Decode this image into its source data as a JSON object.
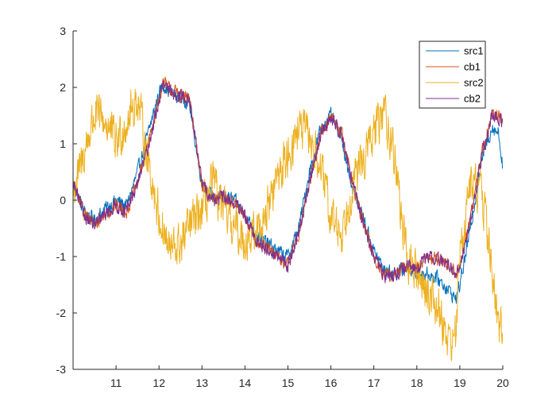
{
  "chart_data": {
    "type": "line",
    "title": "",
    "xlabel": "",
    "ylabel": "",
    "xlim": [
      10,
      20
    ],
    "ylim": [
      -3,
      3
    ],
    "xticks": [
      11,
      12,
      13,
      14,
      15,
      16,
      17,
      18,
      19,
      20
    ],
    "xtick_labels": [
      "11",
      "12",
      "13",
      "14",
      "15",
      "16",
      "17",
      "18",
      "19",
      "20"
    ],
    "yticks": [
      -3,
      -2,
      -1,
      0,
      1,
      2,
      3
    ],
    "ytick_labels": [
      "-3",
      "-2",
      "-1",
      "0",
      "1",
      "2",
      "3"
    ],
    "grid": false,
    "legend": "top-right",
    "series": [
      {
        "name": "src1",
        "color": "#0072BD",
        "noise": 0.05,
        "x": [
          10.0,
          10.25,
          10.5,
          10.75,
          11.0,
          11.25,
          11.5,
          11.75,
          12.0,
          12.1,
          12.2,
          12.5,
          12.7,
          12.85,
          13.0,
          13.25,
          13.5,
          13.75,
          14.0,
          14.25,
          14.5,
          14.75,
          15.0,
          15.25,
          15.5,
          15.75,
          16.0,
          16.25,
          16.5,
          16.75,
          17.0,
          17.25,
          17.5,
          17.75,
          18.0,
          18.25,
          18.5,
          18.75,
          18.9,
          19.0,
          19.25,
          19.5,
          19.75,
          19.9,
          20.0
        ],
        "y": [
          0.3,
          -0.2,
          -0.35,
          -0.15,
          0.0,
          -0.1,
          0.5,
          1.2,
          1.9,
          2.05,
          1.95,
          1.8,
          1.75,
          1.0,
          0.3,
          0.05,
          0.1,
          0.0,
          -0.25,
          -0.6,
          -0.75,
          -0.9,
          -1.0,
          -0.5,
          0.5,
          1.25,
          1.5,
          1.1,
          0.2,
          -0.3,
          -0.9,
          -1.25,
          -1.3,
          -1.2,
          -1.3,
          -1.3,
          -1.4,
          -1.6,
          -1.75,
          -1.5,
          -0.5,
          0.7,
          1.3,
          1.2,
          0.6
        ]
      },
      {
        "name": "cb1",
        "color": "#D95319",
        "noise": 0.05,
        "x": [
          10.0,
          10.25,
          10.5,
          10.75,
          11.0,
          11.25,
          11.5,
          11.75,
          12.0,
          12.1,
          12.2,
          12.5,
          12.7,
          12.85,
          13.0,
          13.25,
          13.5,
          13.75,
          14.0,
          14.25,
          14.5,
          14.75,
          15.0,
          15.25,
          15.5,
          15.75,
          16.0,
          16.25,
          16.5,
          16.75,
          17.0,
          17.25,
          17.5,
          17.75,
          18.0,
          18.25,
          18.5,
          18.75,
          18.9,
          19.0,
          19.25,
          19.5,
          19.75,
          19.9,
          20.0
        ],
        "y": [
          0.3,
          -0.2,
          -0.45,
          -0.25,
          -0.1,
          -0.2,
          0.3,
          1.0,
          1.8,
          2.1,
          2.0,
          1.85,
          1.8,
          1.1,
          0.3,
          0.0,
          0.05,
          -0.05,
          -0.3,
          -0.7,
          -0.85,
          -1.0,
          -1.15,
          -0.6,
          0.3,
          1.15,
          1.5,
          1.2,
          0.3,
          -0.4,
          -1.0,
          -1.35,
          -1.3,
          -1.2,
          -1.2,
          -1.0,
          -1.05,
          -1.15,
          -1.3,
          -1.2,
          -0.3,
          0.8,
          1.5,
          1.5,
          1.45
        ]
      },
      {
        "name": "src2",
        "color": "#EDB120",
        "noise": 0.16,
        "x": [
          10.0,
          10.15,
          10.35,
          10.5,
          10.75,
          11.0,
          11.25,
          11.5,
          11.75,
          12.0,
          12.25,
          12.5,
          12.75,
          13.0,
          13.25,
          13.5,
          13.75,
          14.0,
          14.25,
          14.5,
          14.75,
          15.0,
          15.25,
          15.5,
          15.75,
          16.0,
          16.25,
          16.5,
          16.75,
          17.0,
          17.25,
          17.5,
          17.75,
          18.0,
          18.25,
          18.5,
          18.75,
          18.9,
          19.0,
          19.25,
          19.5,
          19.75,
          19.9,
          20.0
        ],
        "y": [
          0.1,
          0.5,
          1.1,
          1.5,
          1.4,
          1.0,
          1.4,
          1.8,
          0.7,
          -0.3,
          -0.9,
          -0.8,
          -0.4,
          -0.2,
          0.3,
          -0.2,
          -0.5,
          -0.7,
          -0.6,
          -0.2,
          0.4,
          0.8,
          1.3,
          1.1,
          0.6,
          -0.3,
          -0.6,
          0.3,
          0.7,
          1.2,
          1.6,
          0.7,
          -1.0,
          -1.3,
          -1.6,
          -1.9,
          -2.5,
          -2.4,
          -1.0,
          0.3,
          0.2,
          -1.2,
          -2.4,
          -2.1
        ]
      },
      {
        "name": "cb2",
        "color": "#7E2F8E",
        "noise": 0.05,
        "x": [
          10.0,
          10.25,
          10.5,
          10.75,
          11.0,
          11.25,
          11.5,
          11.75,
          12.0,
          12.1,
          12.2,
          12.5,
          12.7,
          12.85,
          13.0,
          13.25,
          13.5,
          13.75,
          14.0,
          14.25,
          14.5,
          14.75,
          15.0,
          15.25,
          15.5,
          15.75,
          16.0,
          16.25,
          16.5,
          16.75,
          17.0,
          17.25,
          17.5,
          17.75,
          18.0,
          18.25,
          18.5,
          18.75,
          18.9,
          19.0,
          19.25,
          19.5,
          19.75,
          19.9,
          20.0
        ],
        "y": [
          0.3,
          -0.25,
          -0.45,
          -0.25,
          -0.1,
          -0.2,
          0.3,
          0.95,
          1.75,
          2.05,
          1.95,
          1.85,
          1.8,
          1.05,
          0.3,
          0.0,
          0.05,
          -0.05,
          -0.3,
          -0.7,
          -0.85,
          -1.0,
          -1.15,
          -0.6,
          0.3,
          1.15,
          1.45,
          1.2,
          0.3,
          -0.4,
          -1.0,
          -1.35,
          -1.3,
          -1.2,
          -1.2,
          -1.0,
          -1.05,
          -1.15,
          -1.3,
          -1.2,
          -0.35,
          0.75,
          1.5,
          1.45,
          1.4
        ]
      }
    ]
  }
}
